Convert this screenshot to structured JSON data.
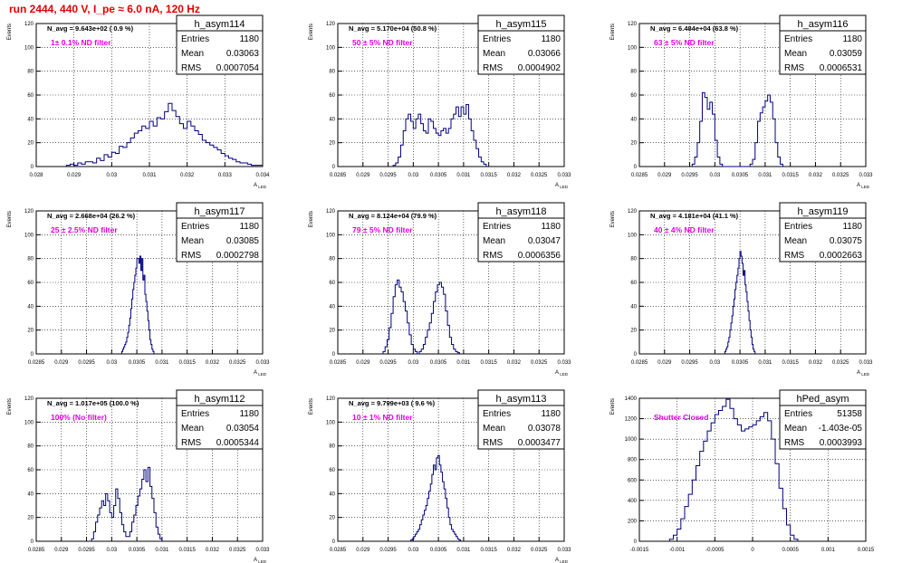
{
  "page": {
    "title": "run 2444,   440 V, I_pe ≈ 6.0 nA, 120 Hz",
    "colors": {
      "title": "#e00000",
      "histogram": "#00007f",
      "filter_label": "#e000e0",
      "grid": "#000000"
    }
  },
  "chart_data": [
    {
      "type": "histogram",
      "name": "h_asym114",
      "navg": "N_avg = 9.643e+02 ( 0.9 %)",
      "filter": "1± 0.1% ND filter",
      "stats": [
        [
          "Entries",
          "1180"
        ],
        [
          "Mean",
          "0.03063"
        ],
        [
          "RMS",
          "0.0007054"
        ]
      ],
      "ylabel": "Events",
      "xlabel": "A_LED",
      "xlim": [
        0.028,
        0.034
      ],
      "ylim": [
        0,
        120
      ],
      "xticks": [
        0.028,
        0.029,
        0.03,
        0.031,
        0.032,
        0.033,
        0.034
      ],
      "xticklabels": [
        "0.028",
        "0.029",
        "0.03",
        "0.031",
        "0.032",
        "0.033",
        "0.034"
      ],
      "yticks": [
        0,
        20,
        40,
        60,
        80,
        100,
        120
      ],
      "grid": true,
      "bins": {
        "start": 0.0288,
        "width": 0.0001,
        "values": [
          1,
          2,
          1,
          3,
          2,
          4,
          4,
          3,
          7,
          5,
          10,
          8,
          12,
          11,
          17,
          16,
          20,
          24,
          28,
          30,
          34,
          32,
          38,
          34,
          41,
          40,
          46,
          53,
          47,
          42,
          36,
          32,
          38,
          34,
          30,
          27,
          22,
          20,
          18,
          16,
          14,
          11,
          9,
          7,
          6,
          4,
          3,
          3,
          2,
          1,
          1,
          1
        ]
      }
    },
    {
      "type": "histogram",
      "name": "h_asym115",
      "navg": "N_avg = 5.170e+04 (50.8 %)",
      "filter": "50 ± 5% ND filter",
      "stats": [
        [
          "Entries",
          "1180"
        ],
        [
          "Mean",
          "0.03066"
        ],
        [
          "RMS",
          "0.0004902"
        ]
      ],
      "ylabel": "Events",
      "xlabel": "A_LED",
      "xlim": [
        0.0285,
        0.033
      ],
      "ylim": [
        0,
        120
      ],
      "xticks": [
        0.0285,
        0.029,
        0.0295,
        0.03,
        0.0305,
        0.031,
        0.0315,
        0.032,
        0.0325,
        0.033
      ],
      "xticklabels": [
        "0.0285",
        "0.029",
        "0.0295",
        "0.03",
        "0.0305",
        "0.031",
        "0.0315",
        "0.032",
        "0.0325",
        "0.033"
      ],
      "yticks": [
        0,
        20,
        40,
        60,
        80,
        100,
        120
      ],
      "grid": true,
      "bins": {
        "start": 0.0296,
        "width": 5e-05,
        "values": [
          1,
          3,
          8,
          18,
          30,
          40,
          44,
          38,
          32,
          40,
          44,
          36,
          30,
          28,
          40,
          38,
          32,
          28,
          26,
          30,
          32,
          28,
          32,
          40,
          44,
          50,
          42,
          50,
          44,
          52,
          40,
          30,
          22,
          15,
          8,
          4,
          2
        ]
      }
    },
    {
      "type": "histogram",
      "name": "h_asym116",
      "navg": "N_avg = 6.484e+04 (63.8 %)",
      "filter": "63 ± 5% ND filter",
      "stats": [
        [
          "Entries",
          "1180"
        ],
        [
          "Mean",
          "0.03059"
        ],
        [
          "RMS",
          "0.0006531"
        ]
      ],
      "ylabel": "Events",
      "xlabel": "A_LED",
      "xlim": [
        0.0285,
        0.033
      ],
      "ylim": [
        0,
        120
      ],
      "xticks": [
        0.0285,
        0.029,
        0.0295,
        0.03,
        0.0305,
        0.031,
        0.0315,
        0.032,
        0.0325,
        0.033
      ],
      "xticklabels": [
        "0.0285",
        "0.029",
        "0.0295",
        "0.03",
        "0.0305",
        "0.031",
        "0.0315",
        "0.032",
        "0.0325",
        "0.033"
      ],
      "yticks": [
        0,
        20,
        40,
        60,
        80,
        100,
        120
      ],
      "grid": true,
      "bins": {
        "start": 0.02955,
        "width": 5e-05,
        "values": [
          2,
          8,
          20,
          38,
          62,
          58,
          48,
          54,
          44,
          22,
          8,
          2,
          0,
          0,
          0,
          0,
          0,
          0,
          0,
          0,
          0,
          0,
          0,
          2,
          6,
          20,
          38,
          45,
          50,
          55,
          60,
          54,
          40,
          20,
          8,
          2
        ]
      }
    },
    {
      "type": "histogram",
      "name": "h_asym117",
      "navg": "N_avg = 2.668e+04 (26.2 %)",
      "filter": "25 ± 2.5% ND filter",
      "stats": [
        [
          "Entries",
          "1180"
        ],
        [
          "Mean",
          "0.03085"
        ],
        [
          "RMS",
          "0.0002798"
        ]
      ],
      "ylabel": "Events",
      "xlabel": "A_LED",
      "xlim": [
        0.0285,
        0.033
      ],
      "ylim": [
        0,
        120
      ],
      "xticks": [
        0.0285,
        0.029,
        0.0295,
        0.03,
        0.0305,
        0.031,
        0.0315,
        0.032,
        0.0325,
        0.033
      ],
      "xticklabels": [
        "0.0285",
        "0.029",
        "0.0295",
        "0.03",
        "0.0305",
        "0.031",
        "0.0315",
        "0.032",
        "0.0325",
        "0.033"
      ],
      "yticks": [
        0,
        20,
        40,
        60,
        80,
        100,
        120
      ],
      "grid": true,
      "bins": {
        "start": 0.0302,
        "width": 2e-05,
        "values": [
          2,
          4,
          6,
          8,
          10,
          14,
          18,
          24,
          30,
          38,
          46,
          54,
          60,
          66,
          72,
          80,
          80,
          76,
          82,
          70,
          80,
          62,
          66,
          50,
          44,
          36,
          28,
          20,
          12,
          8,
          4,
          2
        ]
      }
    },
    {
      "type": "histogram",
      "name": "h_asym118",
      "navg": "N_avg = 8.124e+04 (79.9 %)",
      "filter": "79 ± 5% ND filter",
      "stats": [
        [
          "Entries",
          "1180"
        ],
        [
          "Mean",
          "0.03047"
        ],
        [
          "RMS",
          "0.0006356"
        ]
      ],
      "ylabel": "Events",
      "xlabel": "A_LED",
      "xlim": [
        0.0285,
        0.033
      ],
      "ylim": [
        0,
        120
      ],
      "xticks": [
        0.0285,
        0.029,
        0.0295,
        0.03,
        0.0305,
        0.031,
        0.0315,
        0.032,
        0.0325,
        0.033
      ],
      "xticklabels": [
        "0.0285",
        "0.029",
        "0.0295",
        "0.03",
        "0.0305",
        "0.031",
        "0.0315",
        "0.032",
        "0.0325",
        "0.033"
      ],
      "yticks": [
        0,
        20,
        40,
        60,
        80,
        100,
        120
      ],
      "grid": true,
      "bins": {
        "start": 0.0294,
        "width": 4e-05,
        "values": [
          2,
          6,
          12,
          22,
          34,
          48,
          58,
          62,
          56,
          52,
          44,
          36,
          26,
          16,
          8,
          4,
          2,
          0,
          2,
          4,
          8,
          14,
          20,
          26,
          34,
          44,
          52,
          58,
          60,
          56,
          50,
          36,
          24,
          14,
          8,
          4,
          2,
          1
        ]
      }
    },
    {
      "type": "histogram",
      "name": "h_asym119",
      "navg": "N_avg = 4.181e+04 (41.1 %)",
      "filter": "40 ± 4% ND filter",
      "stats": [
        [
          "Entries",
          "1180"
        ],
        [
          "Mean",
          "0.03075"
        ],
        [
          "RMS",
          "0.0002663"
        ]
      ],
      "ylabel": "Events",
      "xlabel": "A_LED",
      "xlim": [
        0.0285,
        0.033
      ],
      "ylim": [
        0,
        120
      ],
      "xticks": [
        0.0285,
        0.029,
        0.0295,
        0.03,
        0.0305,
        0.031,
        0.0315,
        0.032,
        0.0325,
        0.033
      ],
      "xticklabels": [
        "0.0285",
        "0.029",
        "0.0295",
        "0.03",
        "0.0305",
        "0.031",
        "0.0315",
        "0.032",
        "0.0325",
        "0.033"
      ],
      "yticks": [
        0,
        20,
        40,
        60,
        80,
        100,
        120
      ],
      "grid": true,
      "bins": {
        "start": 0.0302,
        "width": 2e-05,
        "values": [
          2,
          4,
          6,
          10,
          14,
          20,
          26,
          32,
          40,
          46,
          54,
          60,
          66,
          72,
          80,
          86,
          82,
          76,
          66,
          70,
          58,
          52,
          44,
          36,
          28,
          20,
          14,
          8,
          4,
          2
        ]
      }
    },
    {
      "type": "histogram",
      "name": "h_asym112",
      "navg": "N_avg = 1.017e+05 (100.0 %)",
      "filter": "100% (No filter)",
      "stats": [
        [
          "Entries",
          "1180"
        ],
        [
          "Mean",
          "0.03054"
        ],
        [
          "RMS",
          "0.0005344"
        ]
      ],
      "ylabel": "Events",
      "xlabel": "A_LED",
      "xlim": [
        0.0285,
        0.033
      ],
      "ylim": [
        0,
        120
      ],
      "xticks": [
        0.0285,
        0.029,
        0.0295,
        0.03,
        0.0305,
        0.031,
        0.0315,
        0.032,
        0.0325,
        0.033
      ],
      "xticklabels": [
        "0.0285",
        "0.029",
        "0.0295",
        "0.03",
        "0.0305",
        "0.031",
        "0.0315",
        "0.032",
        "0.0325",
        "0.033"
      ],
      "yticks": [
        0,
        20,
        40,
        60,
        80,
        100,
        120
      ],
      "grid": true,
      "bins": {
        "start": 0.0296,
        "width": 4e-05,
        "values": [
          2,
          8,
          16,
          22,
          28,
          34,
          30,
          40,
          34,
          24,
          20,
          30,
          44,
          36,
          24,
          14,
          8,
          4,
          4,
          8,
          16,
          22,
          30,
          38,
          44,
          52,
          60,
          50,
          62,
          46,
          36,
          24,
          12,
          6,
          2
        ]
      }
    },
    {
      "type": "histogram",
      "name": "h_asym113",
      "navg": "N_avg = 9.799e+03 ( 9.6 %)",
      "filter": "10 ± 1% ND filter",
      "stats": [
        [
          "Entries",
          "1180"
        ],
        [
          "Mean",
          "0.03078"
        ],
        [
          "RMS",
          "0.0003477"
        ]
      ],
      "ylabel": "Events",
      "xlabel": "A_LED",
      "xlim": [
        0.0285,
        0.033
      ],
      "ylim": [
        0,
        120
      ],
      "xticks": [
        0.0285,
        0.029,
        0.0295,
        0.03,
        0.0305,
        0.031,
        0.0315,
        0.032,
        0.0325,
        0.033
      ],
      "xticklabels": [
        "0.0285",
        "0.029",
        "0.0295",
        "0.03",
        "0.0305",
        "0.031",
        "0.0315",
        "0.032",
        "0.0325",
        "0.033"
      ],
      "yticks": [
        0,
        20,
        40,
        60,
        80,
        100,
        120
      ],
      "grid": true,
      "bins": {
        "start": 0.02995,
        "width": 3e-05,
        "values": [
          1,
          2,
          4,
          6,
          8,
          10,
          14,
          18,
          22,
          26,
          30,
          36,
          42,
          48,
          56,
          64,
          60,
          70,
          72,
          64,
          58,
          50,
          44,
          36,
          28,
          20,
          14,
          10,
          8,
          6,
          4,
          2,
          1
        ]
      }
    },
    {
      "type": "histogram",
      "name": "hPed_asym",
      "navg": "",
      "filter": "Shutter Closed",
      "stats": [
        [
          "Entries",
          "51358"
        ],
        [
          "Mean",
          "-1.403e-05"
        ],
        [
          "RMS",
          "0.0003993"
        ]
      ],
      "ylabel": "Events",
      "xlabel": "",
      "xlim": [
        -0.0015,
        0.0015
      ],
      "ylim": [
        0,
        1400
      ],
      "xticks": [
        -0.0015,
        -0.001,
        -0.0005,
        0,
        0.0005,
        0.001,
        0.0015
      ],
      "xticklabels": [
        "-0.0015",
        "-0.001",
        "-0.0005",
        "0",
        "0.0005",
        "0.001",
        "0.0015"
      ],
      "yticks": [
        0,
        200,
        400,
        600,
        800,
        1000,
        1200,
        1400
      ],
      "grid": true,
      "bins": {
        "start": -0.0011,
        "width": 5e-05,
        "values": [
          20,
          60,
          120,
          220,
          340,
          460,
          600,
          740,
          880,
          980,
          1080,
          1160,
          1240,
          1280,
          1320,
          1390,
          1300,
          1200,
          1140,
          1080,
          1100,
          1120,
          1140,
          1180,
          1220,
          1260,
          1180,
          1000,
          760,
          520,
          320,
          160,
          60,
          20
        ]
      }
    }
  ]
}
